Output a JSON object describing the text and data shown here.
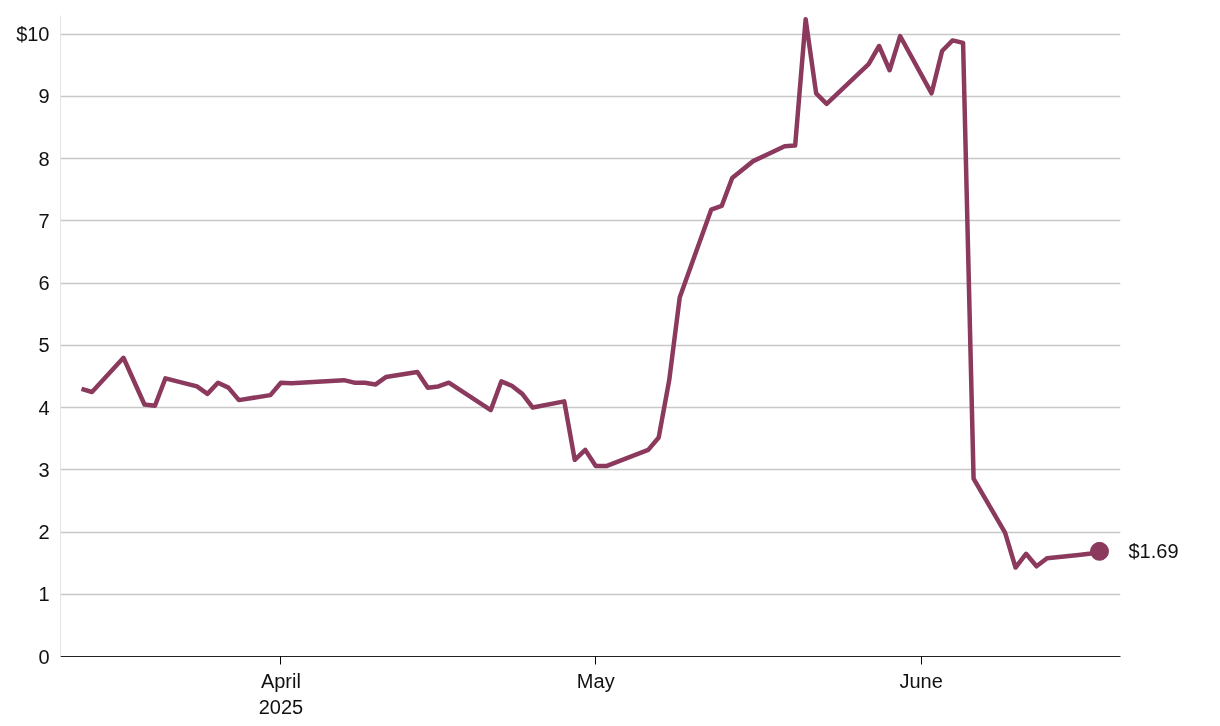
{
  "chart_data": {
    "type": "line",
    "x": [
      "2025-03-13",
      "2025-03-14",
      "2025-03-17",
      "2025-03-19",
      "2025-03-20",
      "2025-03-21",
      "2025-03-24",
      "2025-03-25",
      "2025-03-26",
      "2025-03-27",
      "2025-03-28",
      "2025-03-31",
      "2025-04-01",
      "2025-04-02",
      "2025-04-07",
      "2025-04-08",
      "2025-04-09",
      "2025-04-10",
      "2025-04-11",
      "2025-04-14",
      "2025-04-15",
      "2025-04-16",
      "2025-04-17",
      "2025-04-21",
      "2025-04-22",
      "2025-04-23",
      "2025-04-24",
      "2025-04-25",
      "2025-04-28",
      "2025-04-29",
      "2025-04-30",
      "2025-05-01",
      "2025-05-02",
      "2025-05-06",
      "2025-05-07",
      "2025-05-08",
      "2025-05-09",
      "2025-05-12",
      "2025-05-13",
      "2025-05-14",
      "2025-05-16",
      "2025-05-19",
      "2025-05-20",
      "2025-05-21",
      "2025-05-22",
      "2025-05-23",
      "2025-05-27",
      "2025-05-28",
      "2025-05-29",
      "2025-05-30",
      "2025-06-02",
      "2025-06-03",
      "2025-06-04",
      "2025-06-05",
      "2025-06-06",
      "2025-06-09",
      "2025-06-10",
      "2025-06-11",
      "2025-06-12",
      "2025-06-13",
      "2025-06-16",
      "2025-06-17",
      "2025-06-18"
    ],
    "series": [
      {
        "color": "#8b3a5e",
        "values": [
          4.3,
          4.25,
          4.8,
          4.05,
          4.03,
          4.47,
          4.34,
          4.22,
          4.4,
          4.32,
          4.12,
          4.2,
          4.4,
          4.39,
          4.44,
          4.4,
          4.4,
          4.37,
          4.49,
          4.57,
          4.32,
          4.34,
          4.4,
          3.96,
          4.42,
          4.35,
          4.22,
          4.0,
          4.1,
          3.16,
          3.32,
          3.06,
          3.06,
          3.32,
          3.52,
          4.44,
          5.77,
          7.18,
          7.24,
          7.69,
          7.96,
          8.2,
          8.21,
          10.24,
          9.05,
          8.88,
          9.52,
          9.81,
          9.42,
          9.97,
          9.05,
          9.73,
          9.9,
          9.86,
          2.86,
          1.99,
          1.43,
          1.65,
          1.45,
          1.58,
          1.63,
          1.65,
          1.69
        ]
      }
    ],
    "xlim": [
      "2025-03-11",
      "2025-06-20"
    ],
    "xticks": [
      {
        "value": "2025-04-01",
        "label": "April\n2025"
      },
      {
        "value": "2025-05-01",
        "label": "May"
      },
      {
        "value": "2025-06-01",
        "label": "June"
      }
    ],
    "ylim": [
      0,
      10.3
    ],
    "yticks": [
      0,
      1,
      2,
      3,
      4,
      5,
      6,
      7,
      8,
      9,
      {
        "value": 10,
        "label": "$10"
      }
    ],
    "grid": "y",
    "marker": "none",
    "line_style": "solid",
    "annotations": [
      {
        "text": "$1.69",
        "x": "2025-06-18",
        "y": 1.69
      }
    ]
  }
}
